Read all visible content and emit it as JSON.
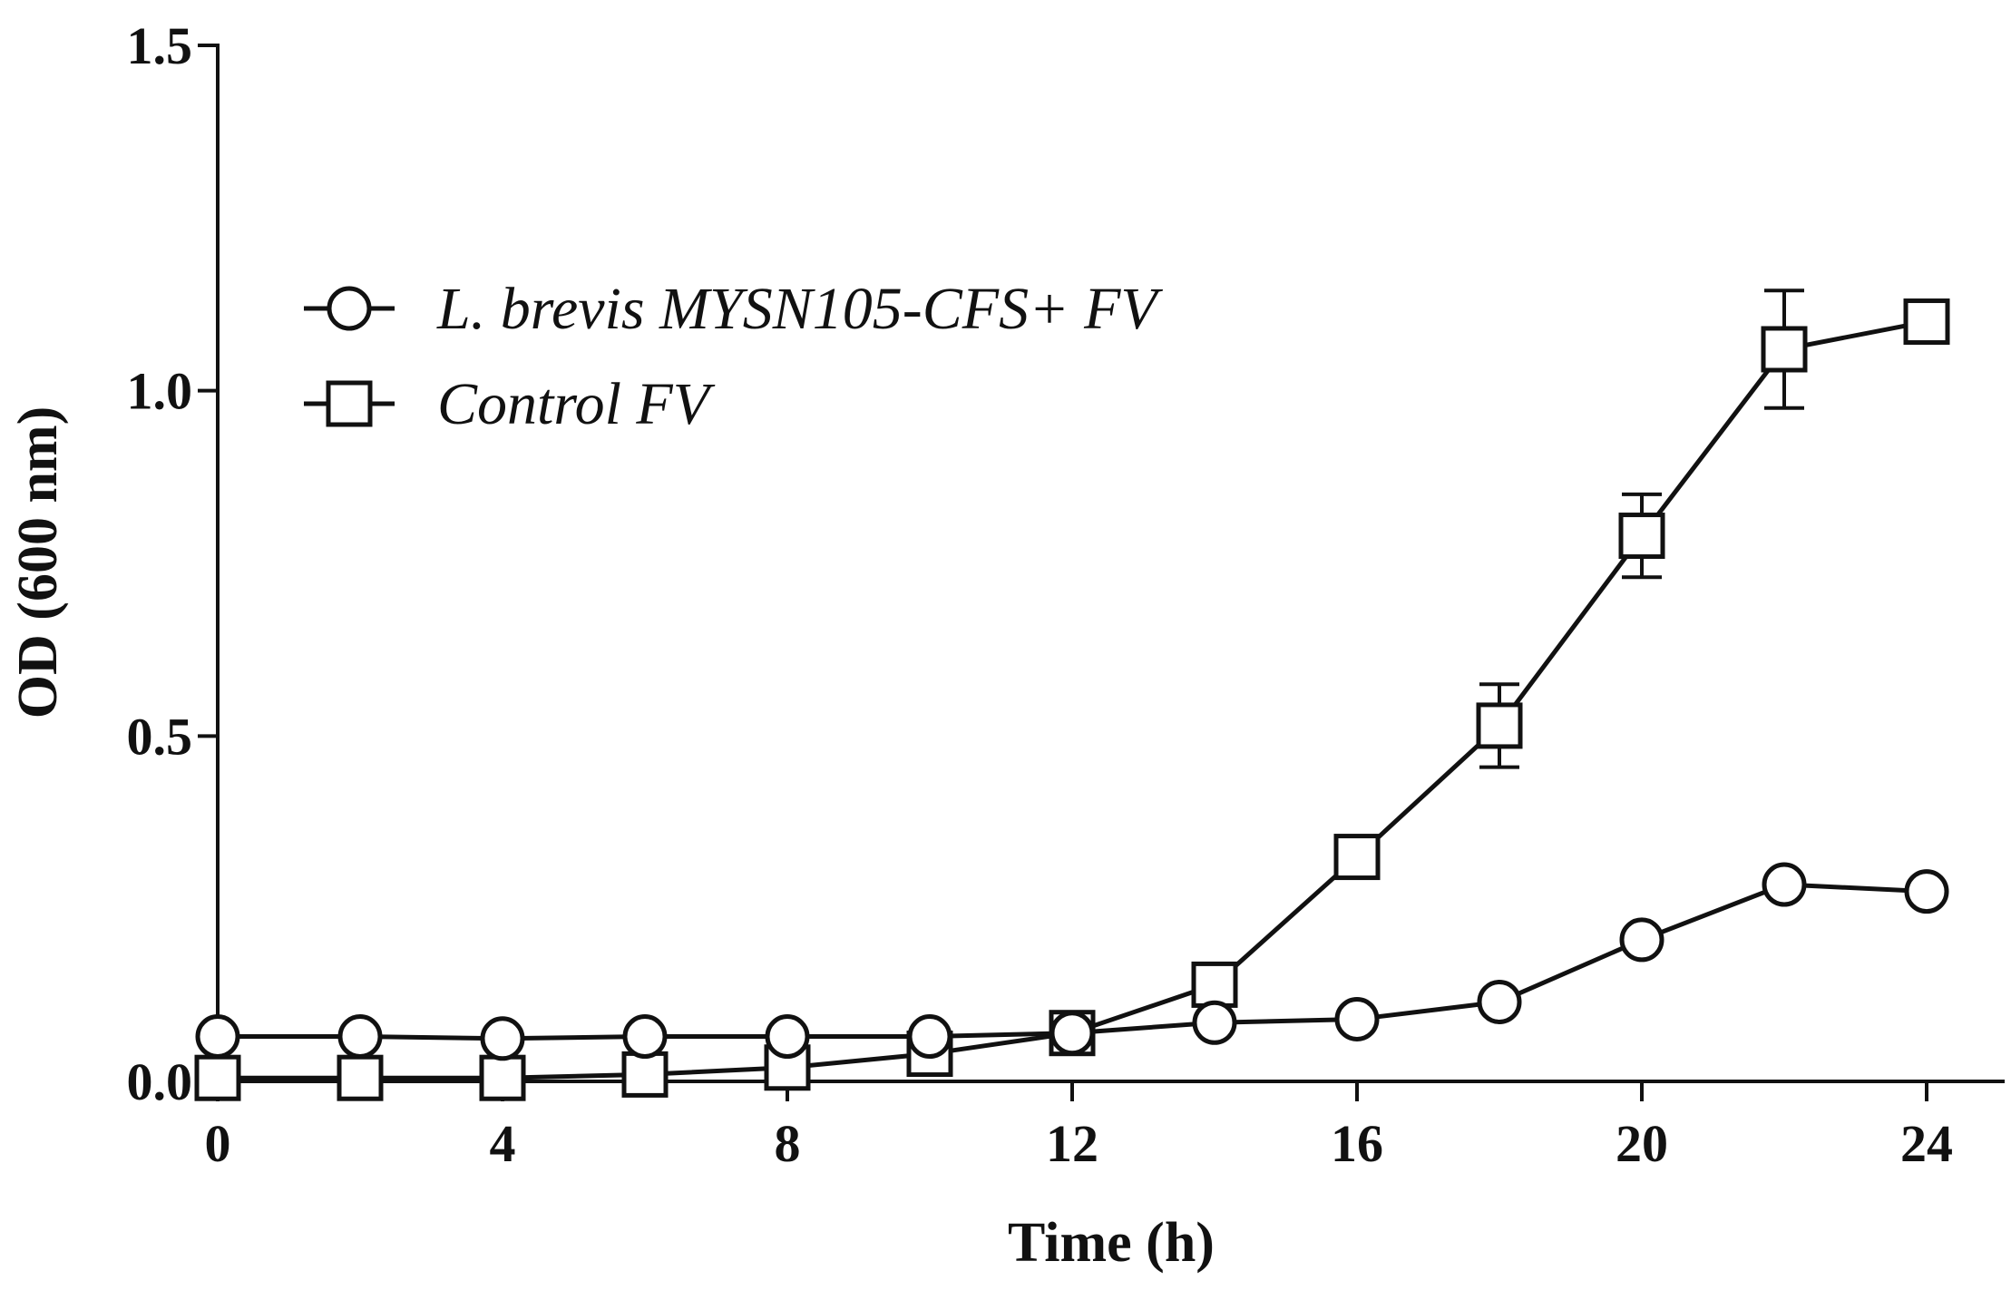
{
  "chart_data": {
    "type": "line",
    "xlabel": "Time (h)",
    "ylabel": "OD (600 nm)",
    "xlim": [
      0,
      25
    ],
    "ylim": [
      0,
      1.5
    ],
    "x_ticks": [
      0,
      4,
      8,
      12,
      16,
      20,
      24
    ],
    "y_ticks": [
      0,
      0.5,
      1.0,
      1.5
    ],
    "x_tick_labels": [
      "0",
      "4",
      "8",
      "12",
      "16",
      "20",
      "24"
    ],
    "y_tick_labels": [
      "0.0",
      "0.5",
      "1.0",
      "1.5"
    ],
    "legend_position": "upper-left",
    "x": [
      0,
      2,
      4,
      6,
      8,
      10,
      12,
      14,
      16,
      18,
      20,
      22,
      24
    ],
    "series": [
      {
        "name": "L. brevis MYSN105-CFS+ FV",
        "marker": "circle",
        "values": [
          0.065,
          0.065,
          0.062,
          0.065,
          0.065,
          0.065,
          0.07,
          0.085,
          0.09,
          0.115,
          0.205,
          0.285,
          0.275
        ],
        "errors": [
          0,
          0,
          0,
          0,
          0,
          0,
          0,
          0,
          0,
          0,
          0,
          0,
          0
        ]
      },
      {
        "name": "Control FV",
        "marker": "square",
        "values": [
          0.005,
          0.005,
          0.005,
          0.01,
          0.02,
          0.04,
          0.07,
          0.14,
          0.325,
          0.515,
          0.79,
          1.06,
          1.1
        ],
        "errors": [
          0,
          0,
          0,
          0,
          0,
          0,
          0,
          0,
          0,
          0.06,
          0.06,
          0.085,
          0
        ]
      }
    ]
  }
}
